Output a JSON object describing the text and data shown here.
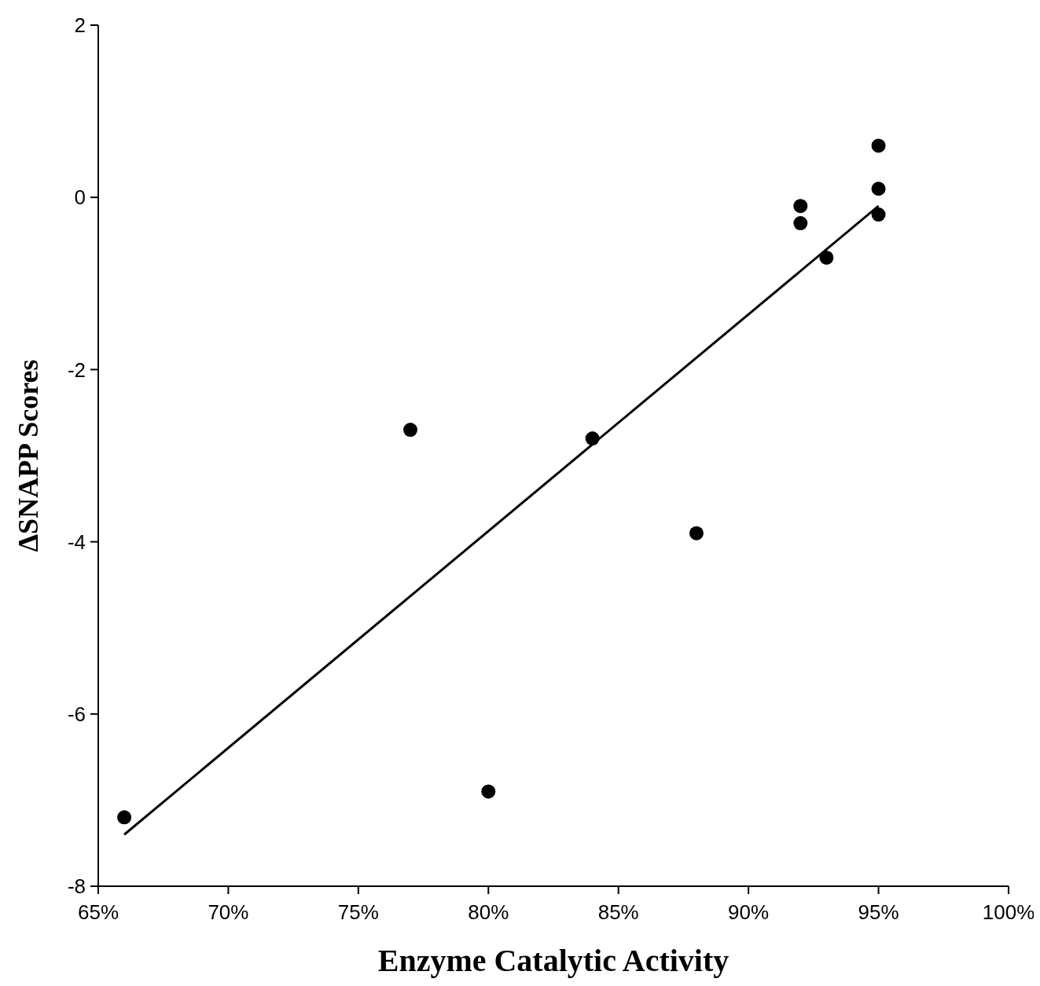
{
  "chart_data": {
    "type": "scatter",
    "xlabel": "Enzyme Catalytic Activity",
    "ylabel": "ΔSNAPP Scores",
    "xlim": [
      65,
      100
    ],
    "xticks": [
      {
        "value": 65,
        "label": "65%"
      },
      {
        "value": 70,
        "label": "70%"
      },
      {
        "value": 75,
        "label": "75%"
      },
      {
        "value": 80,
        "label": "80%"
      },
      {
        "value": 85,
        "label": "85%"
      },
      {
        "value": 90,
        "label": "90%"
      },
      {
        "value": 95,
        "label": "95%"
      },
      {
        "value": 100,
        "label": "100%"
      }
    ],
    "ylim": [
      -8,
      2
    ],
    "yticks": [
      -8,
      -6,
      -4,
      -2,
      0,
      2
    ],
    "grid": false,
    "series": [
      {
        "marker": "circle",
        "color": "#000000",
        "x": [
          66,
          77,
          80,
          84,
          88,
          92,
          92,
          93,
          95,
          95,
          95
        ],
        "values": [
          -7.2,
          -2.7,
          -6.9,
          -2.8,
          -3.9,
          -0.1,
          -0.3,
          -0.7,
          0.6,
          0.1,
          -0.2
        ]
      },
      {
        "type": "line",
        "color": "#000000",
        "line_style": "solid",
        "x": [
          66,
          95
        ],
        "values": [
          -7.4,
          -0.1
        ]
      }
    ]
  }
}
